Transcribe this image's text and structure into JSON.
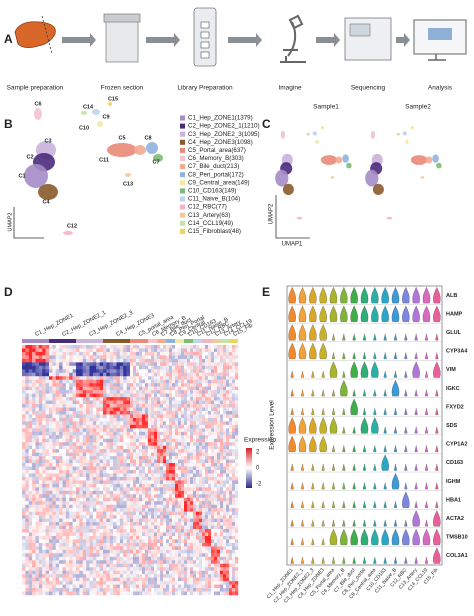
{
  "panels": [
    "A",
    "B",
    "C",
    "D",
    "E"
  ],
  "workflow": [
    "Sample preparation",
    "Frozen section",
    "Library Preparation",
    "Imagine",
    "Sequencing",
    "Analysis"
  ],
  "umap": {
    "x_label": "UMAP1",
    "y_label": "UMAP2",
    "clusters": [
      {
        "label": "C1",
        "legend": "C1_Hep_ZONE1(1379)",
        "color": "#a58cc8"
      },
      {
        "label": "C2",
        "legend": "C2_Hep_ZONE2_1(1210)",
        "color": "#4b2a7b"
      },
      {
        "label": "C3",
        "legend": "C3_Hep_ZONE2_3(1095)",
        "color": "#c9b3dc"
      },
      {
        "label": "C4",
        "legend": "C4_Hep_ZONE3(1098)",
        "color": "#8a5a2b"
      },
      {
        "label": "C5",
        "legend": "C5_Portal_area(637)",
        "color": "#e98a7a"
      },
      {
        "label": "C6",
        "legend": "C6_Memory_B(303)",
        "color": "#f2c4cf"
      },
      {
        "label": "C7",
        "legend": "C7_Bile_duct(213)",
        "color": "#f5a98e"
      },
      {
        "label": "C8",
        "legend": "C8_Peri_portal(172)",
        "color": "#8fb4dc"
      },
      {
        "label": "C9",
        "legend": "C9_Central_area(149)",
        "color": "#f3e7a6"
      },
      {
        "label": "C10",
        "legend": "C10_CD163(149)",
        "color": "#7dbb75"
      },
      {
        "label": "C11",
        "legend": "C11_Naive_B(104)",
        "color": "#b9d7ee"
      },
      {
        "label": "C12",
        "legend": "C12_RBC(77)",
        "color": "#f5b3c8"
      },
      {
        "label": "C13",
        "legend": "C13_Artery(63)",
        "color": "#f4c69c"
      },
      {
        "label": "C14",
        "legend": "C14_CCL19(49)",
        "color": "#c5e3a4"
      },
      {
        "label": "C15",
        "legend": "C15_Fibroblast(48)",
        "color": "#f0d35c"
      }
    ]
  },
  "samples": [
    "Sample1",
    "Sample2"
  ],
  "heatmap": {
    "columns": [
      "C1_Hep_ZONE1",
      "C2_Hep_ZONE2_1",
      "C3_Hep_ZONE2_3",
      "C4_Hep_ZONE3",
      "C5_portal_area",
      "C6_Memory_B",
      "C7_Bile_duct",
      "C8_Peri_Portal",
      "C9_Central",
      "C10_CD163",
      "C11_Naive_B",
      "C12_RBC",
      "C13_Artery",
      "C14_CCL19",
      "C15_Fib"
    ],
    "legend_title": "Expression",
    "scale_ticks": [
      2,
      0,
      -2
    ]
  },
  "violin": {
    "y_label": "Expression Level",
    "genes": [
      "ALB",
      "HAMP",
      "GLUL",
      "CYP3A4",
      "VIM",
      "IGKC",
      "FXYD2",
      "SDS",
      "CYP1A2",
      "CD163",
      "IGHM",
      "HBA1",
      "ACTA2",
      "TMSB10",
      "COL3A1"
    ],
    "groups": [
      "C1_Hep_ZONE1",
      "C2_Hep_ZONE2_1",
      "C3_Hep_ZONE2_3",
      "C4_Hep_ZONE3",
      "C5_Portal_area",
      "C6_Memory_B",
      "C7_Bile_duct",
      "C8_Peri_portal",
      "C9_Central_area",
      "C10_CD163",
      "C11_Naive_B",
      "C12_RBC",
      "C13_Artery",
      "C14_CCL19",
      "C15_Fib"
    ],
    "colors": [
      "#f08a2c",
      "#f2a23a",
      "#d9a62a",
      "#c6b22a",
      "#a6b52c",
      "#7fb43a",
      "#3fae4a",
      "#2fae7a",
      "#2aaea5",
      "#2aa7c6",
      "#3d9ad8",
      "#7a86e0",
      "#b077d8",
      "#d86ac0",
      "#e8609a"
    ]
  }
}
